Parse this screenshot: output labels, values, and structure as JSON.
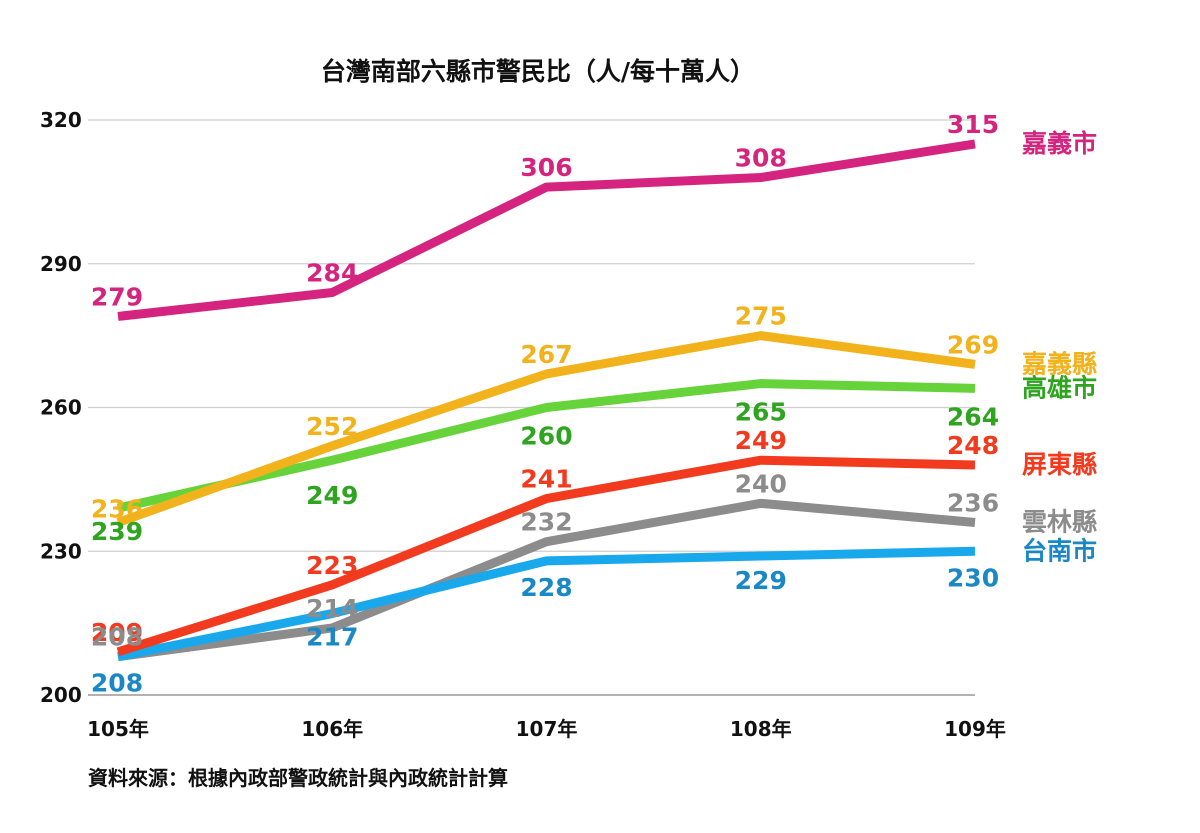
{
  "chart_data": {
    "type": "line",
    "title": "台灣南部六縣市警民比（人/每十萬人）",
    "categories": [
      "105年",
      "106年",
      "107年",
      "108年",
      "109年"
    ],
    "ylim": [
      200,
      320
    ],
    "yticks": [
      200,
      230,
      260,
      290,
      320
    ],
    "grid": true,
    "legend": "right-end labels",
    "series": [
      {
        "name": "嘉義市",
        "color": "#d5247f",
        "values": [
          279,
          284,
          306,
          308,
          315
        ]
      },
      {
        "name": "嘉義縣",
        "color": "#f2b21b",
        "values": [
          236,
          252,
          267,
          275,
          269
        ]
      },
      {
        "name": "高雄市",
        "color": "#66d33a",
        "label_color": "#2ea41f",
        "values": [
          239,
          249,
          260,
          265,
          264
        ]
      },
      {
        "name": "屏東縣",
        "color": "#f23a1f",
        "values": [
          209,
          223,
          241,
          249,
          248
        ]
      },
      {
        "name": "雲林縣",
        "color": "#8c8c8c",
        "values": [
          208,
          214,
          232,
          240,
          236
        ]
      },
      {
        "name": "台南市",
        "color": "#19a8ec",
        "label_color": "#1b88c6",
        "values": [
          208,
          217,
          228,
          229,
          230
        ]
      }
    ],
    "source": "資料來源：根據內政部警政統計與內政統計計算"
  }
}
